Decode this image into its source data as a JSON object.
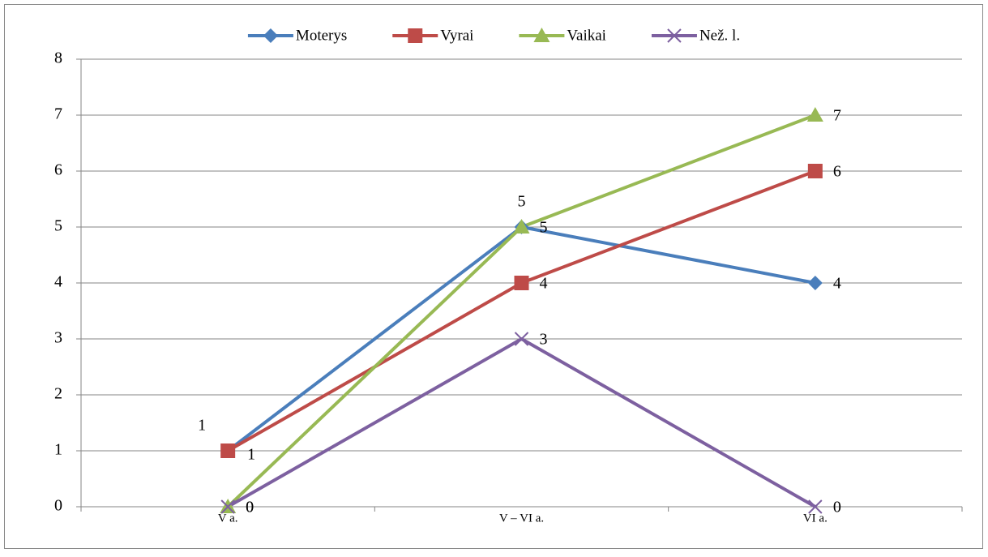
{
  "chart_data": {
    "type": "line",
    "categories": [
      "V a.",
      "V – VI a.",
      "VI a."
    ],
    "series": [
      {
        "name": "Moterys",
        "color": "#4a7ebb",
        "marker": "diamond",
        "values": [
          1,
          5,
          4
        ]
      },
      {
        "name": "Vyrai",
        "color": "#be4b48",
        "marker": "square",
        "values": [
          1,
          4,
          6
        ]
      },
      {
        "name": "Vaikai",
        "color": "#98b954",
        "marker": "triangle",
        "values": [
          0,
          5,
          7
        ]
      },
      {
        "name": "Než. l.",
        "color": "#7d60a0",
        "marker": "x",
        "values": [
          0,
          3,
          0
        ]
      }
    ],
    "ylim": [
      0,
      8
    ],
    "yticks": [
      0,
      1,
      2,
      3,
      4,
      5,
      6,
      7,
      8
    ],
    "grid": true,
    "legend": "top"
  }
}
